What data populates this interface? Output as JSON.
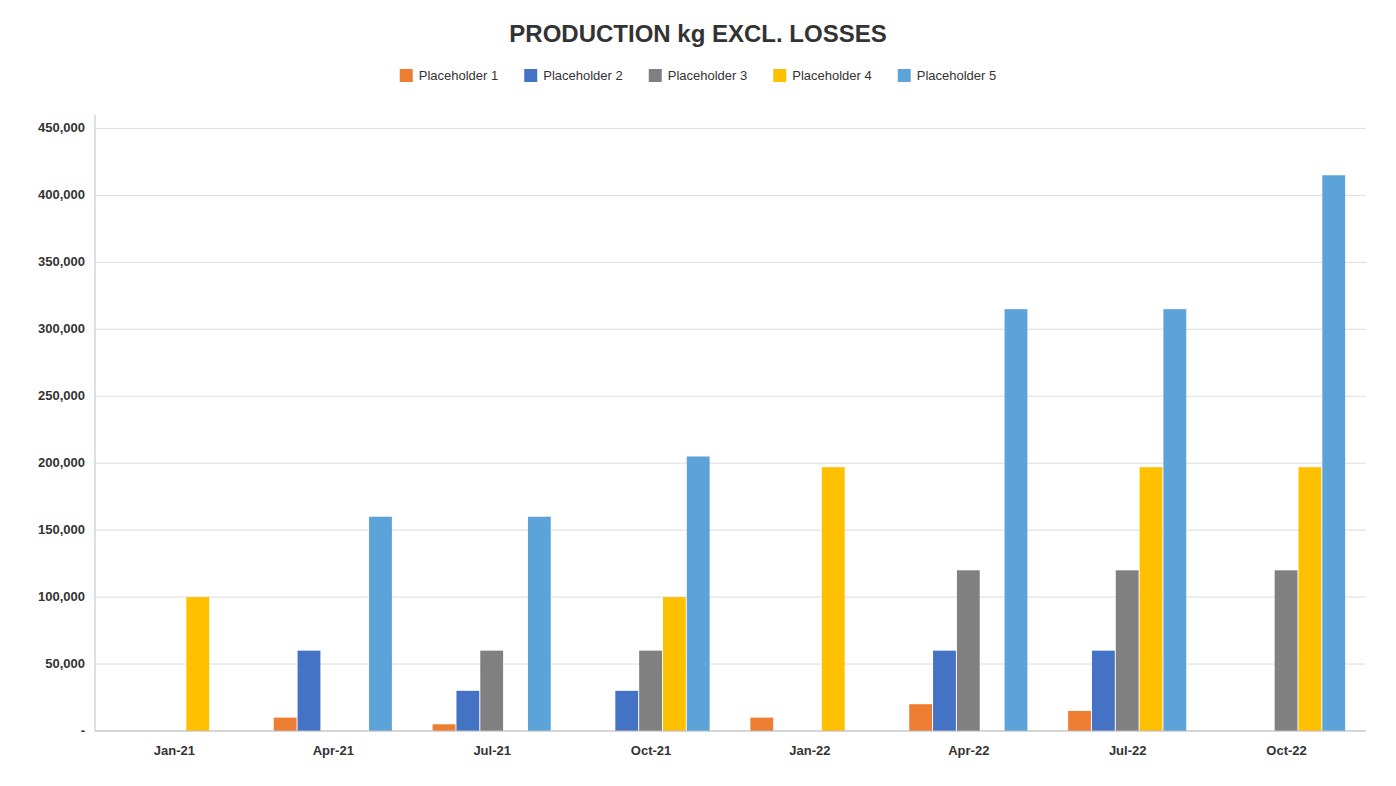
{
  "chart_data": {
    "type": "bar",
    "title": "PRODUCTION  kg EXCL.  LOSSES",
    "categories": [
      "Jan-21",
      "Apr-21",
      "Jul-21",
      "Oct-21",
      "Jan-22",
      "Apr-22",
      "Jul-22",
      "Oct-22"
    ],
    "series": [
      {
        "name": "Placeholder 1",
        "color": "#ED7D31",
        "values": [
          0,
          10000,
          5000,
          0,
          10000,
          20000,
          15000,
          0
        ]
      },
      {
        "name": "Placeholder 2",
        "color": "#4472C4",
        "values": [
          0,
          60000,
          30000,
          30000,
          0,
          60000,
          60000,
          0
        ]
      },
      {
        "name": "Placeholder 3",
        "color": "#808080",
        "values": [
          0,
          0,
          60000,
          60000,
          0,
          120000,
          120000,
          120000
        ]
      },
      {
        "name": "Placeholder 4",
        "color": "#FFC000",
        "values": [
          100000,
          0,
          0,
          100000,
          197000,
          0,
          197000,
          197000
        ]
      },
      {
        "name": "Placeholder 5",
        "color": "#5BA3D9",
        "values": [
          0,
          160000,
          160000,
          205000,
          0,
          315000,
          315000,
          415000
        ]
      }
    ],
    "ylim": [
      0,
      460000
    ],
    "yticks": [
      {
        "value": 0,
        "label": "-"
      },
      {
        "value": 50000,
        "label": "50,000"
      },
      {
        "value": 100000,
        "label": "100,000"
      },
      {
        "value": 150000,
        "label": "150,000"
      },
      {
        "value": 200000,
        "label": "200,000"
      },
      {
        "value": 250000,
        "label": "250,000"
      },
      {
        "value": 300000,
        "label": "300,000"
      },
      {
        "value": 350000,
        "label": "350,000"
      },
      {
        "value": 400000,
        "label": "400,000"
      },
      {
        "value": 450000,
        "label": "450,000"
      }
    ],
    "grid": true,
    "legend": "top"
  }
}
